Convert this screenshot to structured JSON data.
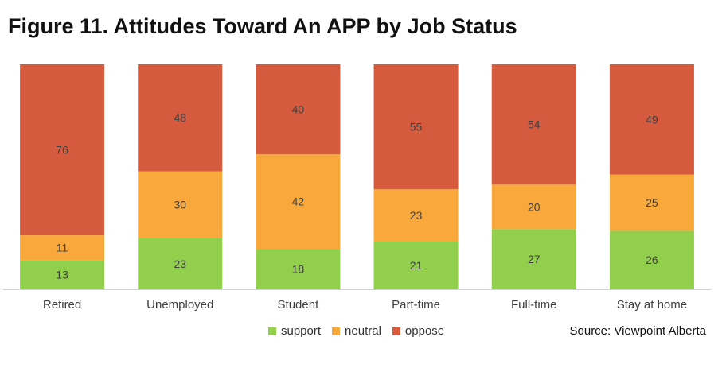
{
  "title": "Figure 11. Attitudes Toward An APP by Job Status",
  "source": "Source: Viewpoint Alberta",
  "colors": {
    "support": "#92cf4c",
    "neutral": "#f9a83c",
    "oppose": "#d55a3e",
    "axis": "#d0d0d0"
  },
  "chart_data": {
    "type": "bar",
    "stacked": true,
    "title": "Figure 11. Attitudes Toward An APP by Job Status",
    "xlabel": "",
    "ylabel": "",
    "categories": [
      "Retired",
      "Unemployed",
      "Student",
      "Part-time",
      "Full-time",
      "Stay at home"
    ],
    "series": [
      {
        "name": "support",
        "values": [
          13,
          23,
          18,
          21,
          27,
          26
        ]
      },
      {
        "name": "neutral",
        "values": [
          11,
          30,
          42,
          23,
          20,
          25
        ]
      },
      {
        "name": "oppose",
        "values": [
          76,
          48,
          40,
          55,
          54,
          49
        ]
      }
    ],
    "legend_position": "bottom",
    "grid": false
  }
}
